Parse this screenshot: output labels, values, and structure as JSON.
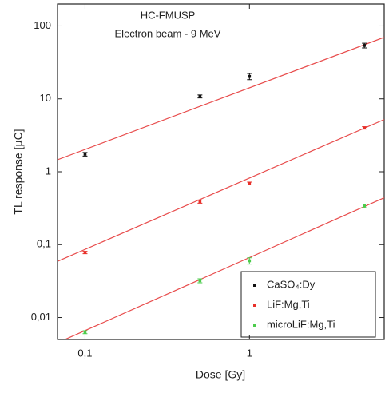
{
  "chart_data": {
    "type": "scatter",
    "annotations": [
      "HC-FMUSP",
      "Electron beam - 9 MeV"
    ],
    "x_label": "Dose [Gy]",
    "y_label": "TL response [µC]",
    "x_scale": "log",
    "y_scale": "log",
    "xlim": [
      0.068,
      6.6
    ],
    "ylim": [
      0.005,
      200
    ],
    "xticks": [
      {
        "value": 0.1,
        "label": "0,1"
      },
      1
    ],
    "yticks": [
      {
        "value": 0.01,
        "label": "0,01"
      },
      {
        "value": 0.1,
        "label": "0,1"
      },
      1,
      10,
      100
    ],
    "legend": "lower right",
    "x": [
      0.1,
      0.5,
      1,
      5
    ],
    "series": [
      {
        "name": "CaSO₄:Dy",
        "color": "#111111",
        "values": [
          1.74,
          10.8,
          20.3,
          54
        ],
        "errors": [
          0.1,
          0.5,
          2,
          4
        ]
      },
      {
        "name": "LiF:Mg,Ti",
        "color": "#e8302a",
        "values": [
          0.078,
          0.39,
          0.69,
          4.0
        ],
        "errors": [
          0.003,
          0.02,
          0.03,
          0.15
        ]
      },
      {
        "name": "microLiF:Mg,Ti",
        "color": "#4ccc4c",
        "values": [
          0.0063,
          0.032,
          0.06,
          0.34
        ],
        "errors": [
          0.0003,
          0.002,
          0.006,
          0.02
        ]
      }
    ],
    "fit_lines": {
      "color": "#e84c4c",
      "x": [
        0.068,
        6.6
      ],
      "series": [
        [
          1.46,
          69.8
        ],
        [
          0.059,
          5.2
        ],
        [
          0.0045,
          0.44
        ]
      ]
    }
  }
}
